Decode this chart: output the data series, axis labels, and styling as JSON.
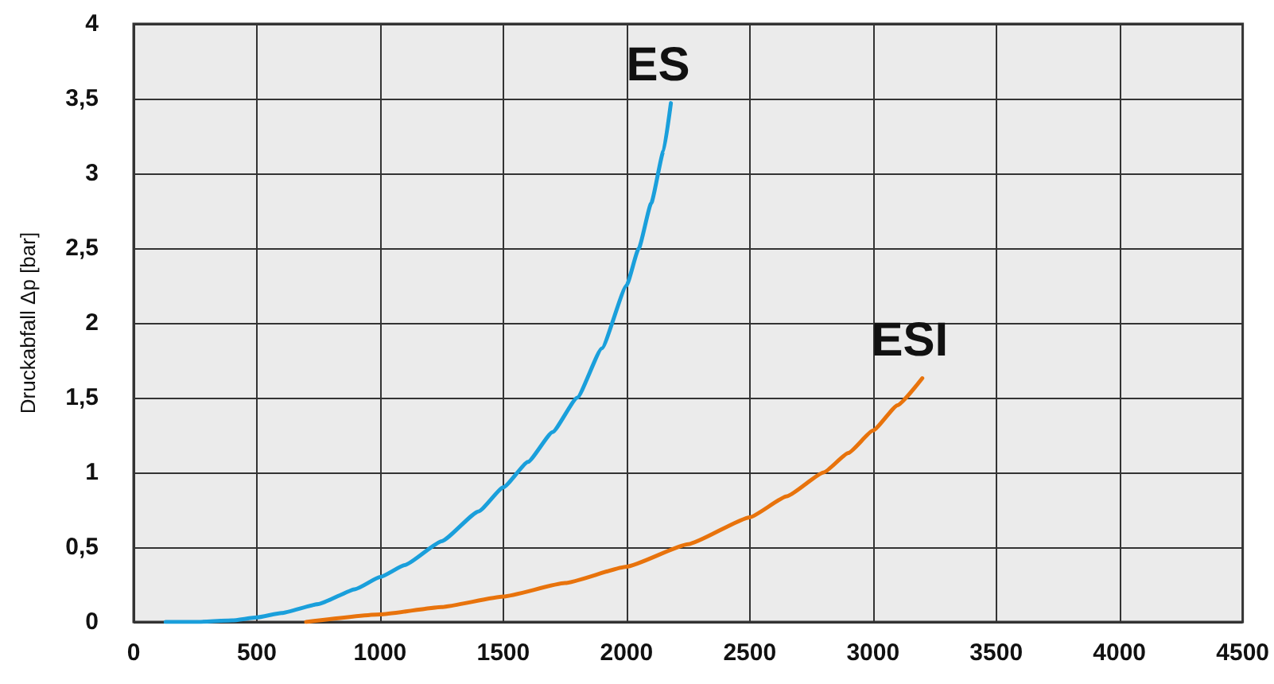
{
  "chart_data": {
    "type": "line",
    "ylabel": "Druckabfall Δp [bar]",
    "series": [
      {
        "name": "ES",
        "color": "#1a9fdb",
        "x": [
          130,
          250,
          400,
          500,
          600,
          750,
          900,
          1000,
          1100,
          1250,
          1400,
          1500,
          1600,
          1700,
          1800,
          1900,
          2000,
          2050,
          2100,
          2150,
          2180
        ],
        "values": [
          0,
          0,
          0.01,
          0.03,
          0.06,
          0.12,
          0.22,
          0.3,
          0.38,
          0.54,
          0.74,
          0.9,
          1.07,
          1.27,
          1.5,
          1.83,
          2.25,
          2.5,
          2.8,
          3.15,
          3.47
        ]
      },
      {
        "name": "ESI",
        "color": "#e8730c",
        "x": [
          700,
          1000,
          1250,
          1500,
          1750,
          2000,
          2250,
          2500,
          2650,
          2800,
          2900,
          3000,
          3100,
          3200
        ],
        "values": [
          0,
          0.05,
          0.1,
          0.17,
          0.26,
          0.37,
          0.52,
          0.7,
          0.84,
          1.0,
          1.13,
          1.28,
          1.45,
          1.63
        ]
      }
    ],
    "xlim": [
      0,
      4500
    ],
    "xticks": [
      0,
      500,
      1000,
      1500,
      2000,
      2500,
      3000,
      3500,
      4000,
      4500
    ],
    "ylim": [
      0,
      4
    ],
    "yticks": [
      0,
      {
        "value": 0.5,
        "label": "0,5"
      },
      1,
      {
        "value": 1.5,
        "label": "1,5"
      },
      2,
      {
        "value": 2.5,
        "label": "2,5"
      },
      3,
      {
        "value": 3.5,
        "label": "3,5"
      },
      4
    ],
    "grid": true,
    "legend": false,
    "marker": "none",
    "line_style": "solid"
  }
}
